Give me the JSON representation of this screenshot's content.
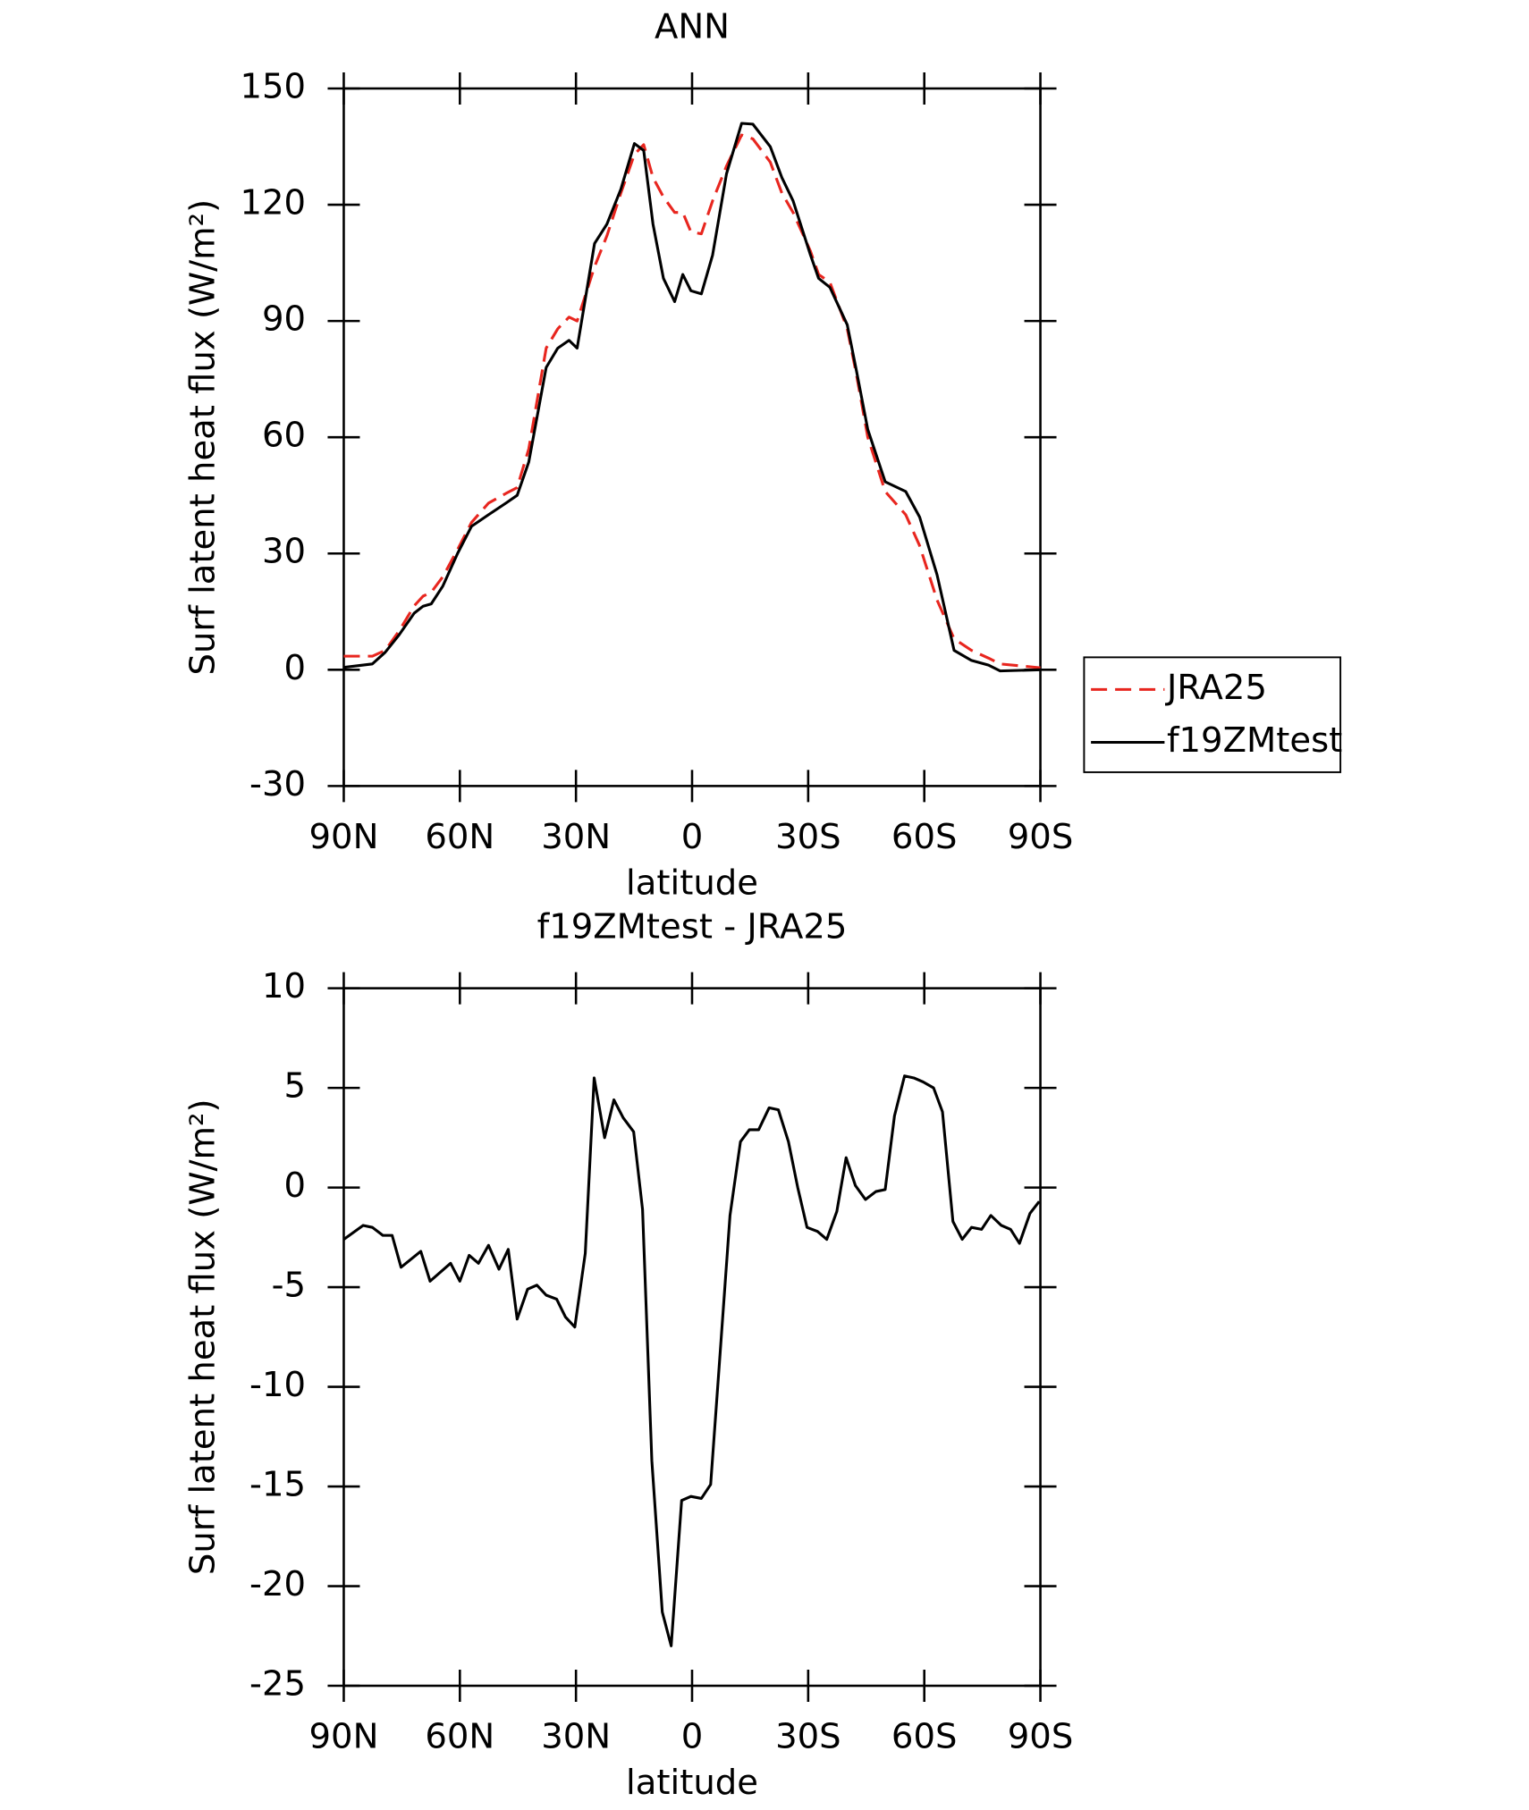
{
  "chart_data": [
    {
      "type": "line",
      "title": "ANN",
      "x_label": "latitude",
      "y_label": "Surf latent heat flux (W/m²)",
      "xlim": [
        90,
        -90
      ],
      "xticks": [
        {
          "value": 90,
          "label": "90N"
        },
        {
          "value": 60,
          "label": "60N"
        },
        {
          "value": 30,
          "label": "30N"
        },
        0,
        {
          "value": -30,
          "label": "30S"
        },
        {
          "value": -60,
          "label": "60S"
        },
        {
          "value": -90,
          "label": "90S"
        }
      ],
      "ylim": [
        -30,
        150
      ],
      "yticks": [
        -30,
        0,
        30,
        60,
        90,
        120,
        150
      ],
      "legend": "right",
      "x": [
        90,
        82.6,
        79.3,
        75.7,
        71.8,
        69.5,
        67.4,
        64.4,
        60.6,
        57,
        52.6,
        48.1,
        45.2,
        42.2,
        37.7,
        34.7,
        31.8,
        29.7,
        25.2,
        22,
        18.4,
        14.9,
        12.5,
        10.1,
        7.4,
        4.5,
        2.4,
        0.3,
        -2.4,
        -5.3,
        -8.9,
        -12.8,
        -15.7,
        -20.2,
        -23.2,
        -26.1,
        -30.6,
        -32.7,
        -35.6,
        -40.1,
        -42.5,
        -45.4,
        -49.9,
        -55.2,
        -58.8,
        -63.3,
        -67.7,
        -72.2,
        -76.6,
        -79.6,
        -90
      ],
      "series": [
        {
          "name": "JRA25",
          "color": "#e8261f",
          "dash": true,
          "values": [
            3.5,
            3.5,
            5,
            10,
            16.5,
            19,
            20,
            24,
            31,
            38,
            43,
            45.5,
            47,
            57,
            83,
            88,
            91,
            90,
            104,
            112,
            123,
            133,
            135.5,
            127,
            122,
            118,
            118,
            113,
            112.5,
            121,
            130,
            138,
            137,
            131,
            123,
            118,
            108,
            102,
            100,
            88,
            76,
            60,
            46,
            40,
            32,
            18,
            8,
            5,
            3,
            1.5,
            0.5
          ]
        },
        {
          "name": "f19ZMtest",
          "color": "#000000",
          "dash": false,
          "values": [
            0.6,
            1.5,
            4.5,
            9,
            14.6,
            16.4,
            17,
            21.6,
            30,
            37,
            40,
            43,
            45,
            53.6,
            78,
            83,
            85,
            83,
            110,
            115,
            124,
            135.8,
            134,
            115,
            101,
            95,
            102,
            97.8,
            97,
            107,
            128,
            141,
            140.8,
            135,
            127,
            121,
            107,
            101,
            98.7,
            89,
            77,
            62,
            48.5,
            46,
            39.4,
            24.5,
            5,
            2.4,
            1.2,
            -0.3,
            0
          ]
        }
      ]
    },
    {
      "type": "line",
      "title": "f19ZMtest - JRA25",
      "x_label": "latitude",
      "y_label": "Surf latent heat flux (W/m²)",
      "xlim": [
        90,
        -90
      ],
      "xticks": [
        {
          "value": 90,
          "label": "90N"
        },
        {
          "value": 60,
          "label": "60N"
        },
        {
          "value": 30,
          "label": "30N"
        },
        0,
        {
          "value": -30,
          "label": "30S"
        },
        {
          "value": -60,
          "label": "60S"
        },
        {
          "value": -90,
          "label": "90S"
        }
      ],
      "ylim": [
        -25,
        10
      ],
      "yticks": [
        -25,
        -20,
        -15,
        -10,
        -5,
        0,
        5,
        10
      ],
      "x": [
        90,
        85,
        82.6,
        79.9,
        77.5,
        75.2,
        70.1,
        67.7,
        62.4,
        60,
        57.6,
        55.2,
        52.6,
        49.9,
        47.5,
        45.2,
        42.5,
        40.1,
        37.7,
        35,
        32.7,
        30.3,
        27.6,
        25.3,
        22.6,
        20.2,
        17.8,
        15.1,
        12.8,
        10.4,
        7.7,
        5.4,
        2.7,
        0.3,
        -2.4,
        -4.8,
        -7.4,
        -9.8,
        -12.5,
        -14.8,
        -17.2,
        -19.9,
        -22.3,
        -24.9,
        -27.3,
        -29.7,
        -32.4,
        -34.8,
        -37.4,
        -39.8,
        -42.2,
        -44.8,
        -47.5,
        -49.9,
        -52.3,
        -54.9,
        -57.3,
        -59.7,
        -62.4,
        -64.7,
        -67.4,
        -69.8,
        -72.2,
        -74.8,
        -77.2,
        -79.9,
        -82.3,
        -84.6,
        -87.3,
        -89.7
      ],
      "series": [
        {
          "color": "#000000",
          "dash": false,
          "values": [
            -2.6,
            -1.9,
            -2.0,
            -2.4,
            -2.4,
            -4,
            -3.2,
            -4.7,
            -3.8,
            -4.7,
            -3.4,
            -3.8,
            -2.9,
            -4.1,
            -3.1,
            -6.6,
            -5.1,
            -4.9,
            -5.4,
            -5.6,
            -6.5,
            -7,
            -3.3,
            5.5,
            2.5,
            4.4,
            3.5,
            2.8,
            -1.1,
            -13.7,
            -21.3,
            -23,
            -15.7,
            -15.5,
            -15.6,
            -14.9,
            -7.9,
            -1.4,
            2.3,
            2.9,
            2.9,
            4.0,
            3.9,
            2.3,
            0,
            -2.0,
            -2.2,
            -2.6,
            -1.2,
            1.5,
            0.1,
            -0.6,
            -0.2,
            -0.1,
            3.6,
            5.6,
            5.5,
            5.3,
            5.0,
            3.8,
            -1.7,
            -2.6,
            -2.0,
            -2.1,
            -1.4,
            -1.9,
            -2.1,
            -2.8,
            -1.3,
            -0.7
          ]
        }
      ]
    }
  ]
}
